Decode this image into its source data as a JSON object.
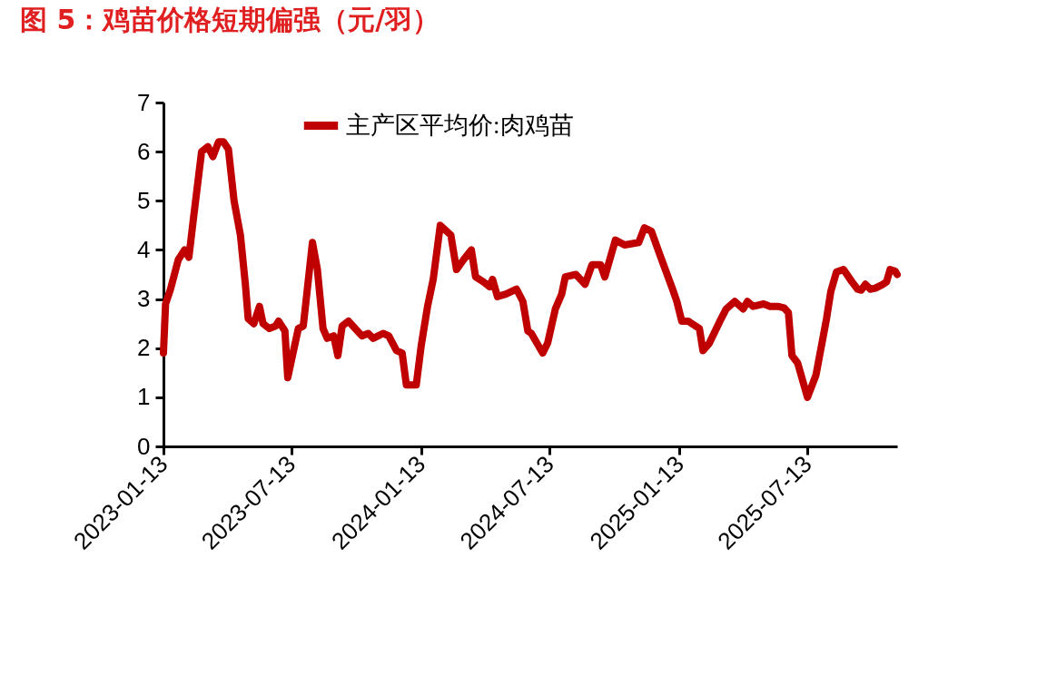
{
  "chart_data": {
    "type": "line",
    "title": "图 5：鸡苗价格短期偏强（元/羽）",
    "x": [
      "2023-01-13",
      "2023-01-16",
      "2023-01-23",
      "2023-02-03",
      "2023-02-12",
      "2023-02-18",
      "2023-02-25",
      "2023-03-08",
      "2023-03-17",
      "2023-03-24",
      "2023-04-01",
      "2023-04-08",
      "2023-04-15",
      "2023-04-23",
      "2023-05-02",
      "2023-05-09",
      "2023-05-13",
      "2023-05-21",
      "2023-05-29",
      "2023-06-03",
      "2023-06-12",
      "2023-06-21",
      "2023-06-25",
      "2023-07-04",
      "2023-07-08",
      "2023-07-17",
      "2023-07-23",
      "2023-07-30",
      "2023-08-12",
      "2023-08-19",
      "2023-08-27",
      "2023-09-02",
      "2023-09-11",
      "2023-09-17",
      "2023-09-23",
      "2023-10-02",
      "2023-10-21",
      "2023-10-30",
      "2023-11-06",
      "2023-11-20",
      "2023-11-28",
      "2023-12-09",
      "2023-12-17",
      "2023-12-23",
      "2024-01-06",
      "2024-01-13",
      "2024-01-22",
      "2024-01-30",
      "2024-02-09",
      "2024-02-24",
      "2024-03-03",
      "2024-03-13",
      "2024-03-24",
      "2024-03-30",
      "2024-04-10",
      "2024-04-19",
      "2024-04-23",
      "2024-04-30",
      "2024-05-12",
      "2024-05-27",
      "2024-06-05",
      "2024-06-12",
      "2024-06-17",
      "2024-07-03",
      "2024-07-10",
      "2024-07-21",
      "2024-07-30",
      "2024-08-04",
      "2024-08-19",
      "2024-09-01",
      "2024-09-11",
      "2024-09-23",
      "2024-09-29",
      "2024-10-14",
      "2024-10-27",
      "2024-11-16",
      "2024-11-24",
      "2024-12-04",
      "2024-12-16",
      "2025-01-03",
      "2025-01-09",
      "2025-01-16",
      "2025-01-25",
      "2025-02-10",
      "2025-02-15",
      "2025-02-24",
      "2025-03-11",
      "2025-03-20",
      "2025-04-01",
      "2025-04-13",
      "2025-04-19",
      "2025-04-27",
      "2025-05-12",
      "2025-05-21",
      "2025-06-01",
      "2025-06-10",
      "2025-06-16",
      "2025-06-21",
      "2025-06-29",
      "2025-07-08",
      "2025-07-13",
      "2025-07-25",
      "2025-08-09",
      "2025-08-15",
      "2025-08-23",
      "2025-09-02",
      "2025-09-14",
      "2025-09-22",
      "2025-09-27",
      "2025-10-03",
      "2025-10-10",
      "2025-10-17",
      "2025-10-28",
      "2025-11-02",
      "2025-11-07",
      "2025-11-14",
      "2025-11-17"
    ],
    "series": [
      {
        "name": "主产区平均价:肉鸡苗",
        "color": "#c00000",
        "values": [
          1.9,
          2.9,
          3.2,
          3.8,
          4.0,
          3.85,
          4.7,
          6.0,
          6.1,
          5.9,
          6.2,
          6.2,
          6.05,
          5.0,
          4.3,
          3.3,
          2.6,
          2.5,
          2.85,
          2.5,
          2.4,
          2.45,
          2.55,
          2.35,
          1.4,
          2.0,
          2.4,
          2.45,
          4.15,
          3.6,
          2.4,
          2.2,
          2.25,
          1.85,
          2.45,
          2.55,
          2.25,
          2.3,
          2.2,
          2.3,
          2.25,
          1.95,
          1.9,
          1.25,
          1.25,
          2.05,
          2.85,
          3.4,
          4.5,
          4.3,
          3.6,
          3.8,
          4.0,
          3.45,
          3.35,
          3.25,
          3.4,
          3.05,
          3.1,
          3.2,
          2.95,
          2.35,
          2.3,
          1.9,
          2.1,
          2.8,
          3.1,
          3.45,
          3.5,
          3.3,
          3.7,
          3.7,
          3.45,
          4.2,
          4.1,
          4.15,
          4.45,
          4.38,
          3.9,
          3.2,
          2.95,
          2.55,
          2.55,
          2.4,
          1.95,
          2.1,
          2.55,
          2.8,
          2.95,
          2.8,
          2.95,
          2.85,
          2.9,
          2.85,
          2.85,
          2.82,
          2.72,
          1.85,
          1.7,
          1.25,
          1.0,
          1.45,
          2.6,
          3.15,
          3.55,
          3.6,
          3.35,
          3.2,
          3.18,
          3.3,
          3.2,
          3.22,
          3.3,
          3.35,
          3.6,
          3.57,
          3.5
        ]
      }
    ],
    "xlim": [
      "2023-01-13",
      "2025-11-17"
    ],
    "xticks": [
      "2023-01-13",
      "2023-07-13",
      "2024-01-13",
      "2024-07-13",
      "2025-01-13",
      "2025-07-13"
    ],
    "ylim": [
      0,
      7
    ],
    "yticks": [
      0,
      1,
      2,
      3,
      4,
      5,
      6,
      7
    ],
    "grid": false,
    "legend": "top",
    "marker": "none",
    "line_style": "solid"
  }
}
